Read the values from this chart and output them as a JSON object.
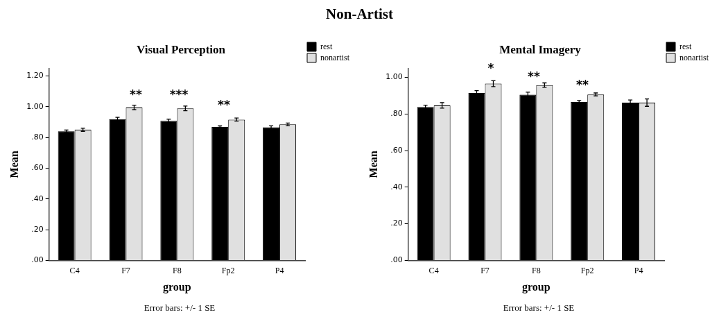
{
  "chart_data": [
    {
      "type": "bar",
      "title": "Visual Perception",
      "xlabel": "group",
      "ylabel": "Mean",
      "categories": [
        "C4",
        "F7",
        "F8",
        "Fp2",
        "P4"
      ],
      "series": [
        {
          "name": "rest",
          "color": "#000000",
          "values": [
            0.84,
            0.919,
            0.908,
            0.868,
            0.866
          ],
          "errors": [
            0.008,
            0.012,
            0.01,
            0.007,
            0.01
          ]
        },
        {
          "name": "nonartist",
          "color": "#e0e0e0",
          "values": [
            0.85,
            0.995,
            0.989,
            0.916,
            0.885
          ],
          "errors": [
            0.01,
            0.015,
            0.015,
            0.01,
            0.009
          ]
        }
      ],
      "ylim": [
        0,
        1.25
      ],
      "yticks": [
        {
          "value": 0,
          "label": ".00"
        },
        {
          "value": 0.2,
          "label": ".20"
        },
        {
          "value": 0.4,
          "label": ".40"
        },
        {
          "value": 0.6,
          "label": ".60"
        },
        {
          "value": 0.8,
          "label": ".80"
        },
        {
          "value": 1.0,
          "label": "1.00"
        },
        {
          "value": 1.2,
          "label": "1.20"
        }
      ],
      "grid": false,
      "legend": "top right",
      "annotations": [
        "Non-Artist",
        "**",
        "***",
        "**",
        "Error bars: +/- 1 SE"
      ]
    },
    {
      "type": "bar",
      "title": "Mental Imagery",
      "xlabel": "group",
      "ylabel": "Mean",
      "categories": [
        "C4",
        "F7",
        "F8",
        "Fp2",
        "P4"
      ],
      "series": [
        {
          "name": "rest",
          "color": "#000000",
          "values": [
            0.838,
            0.915,
            0.906,
            0.866,
            0.862
          ],
          "errors": [
            0.01,
            0.013,
            0.013,
            0.008,
            0.015
          ]
        },
        {
          "name": "nonartist",
          "color": "#e0e0e0",
          "values": [
            0.847,
            0.966,
            0.958,
            0.907,
            0.862
          ],
          "errors": [
            0.015,
            0.016,
            0.012,
            0.008,
            0.02
          ]
        }
      ],
      "ylim": [
        0,
        1.05
      ],
      "yticks": [
        {
          "value": 0,
          "label": ".00"
        },
        {
          "value": 0.2,
          "label": ".20"
        },
        {
          "value": 0.4,
          "label": ".40"
        },
        {
          "value": 0.6,
          "label": ".60"
        },
        {
          "value": 0.8,
          "label": ".80"
        },
        {
          "value": 1.0,
          "label": "1.00"
        }
      ],
      "grid": false,
      "legend": "top right",
      "annotations": [
        "*",
        "**",
        "**",
        "Error bars: +/- 1 SE"
      ]
    }
  ]
}
